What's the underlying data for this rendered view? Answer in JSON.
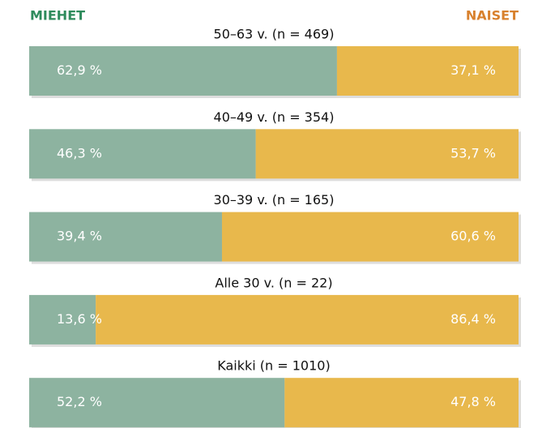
{
  "chart_data": {
    "type": "bar",
    "orientation": "horizontal",
    "stacked": true,
    "categories": [
      "50–63 v. (n = 469)",
      "40–49 v. (n = 354)",
      "30–39 v. (n = 165)",
      "Alle 30 v. (n = 22)",
      "Kaikki (n = 1010)"
    ],
    "series": [
      {
        "name": "MIEHET",
        "color": "#8db3a0",
        "label_color": "#2e8b5c",
        "values": [
          62.9,
          46.3,
          39.4,
          13.6,
          52.2
        ],
        "value_labels": [
          "62,9 %",
          "46,3 %",
          "39,4 %",
          "13,6 %",
          "52,2 %"
        ]
      },
      {
        "name": "NAISET",
        "color": "#e8b84c",
        "label_color": "#d8812e",
        "values": [
          37.1,
          53.7,
          60.6,
          86.4,
          47.8
        ],
        "value_labels": [
          "37,1 %",
          "53,7 %",
          "60,6 %",
          "86,4 %",
          "47,8 %"
        ]
      }
    ],
    "xlim": [
      0,
      100
    ]
  }
}
